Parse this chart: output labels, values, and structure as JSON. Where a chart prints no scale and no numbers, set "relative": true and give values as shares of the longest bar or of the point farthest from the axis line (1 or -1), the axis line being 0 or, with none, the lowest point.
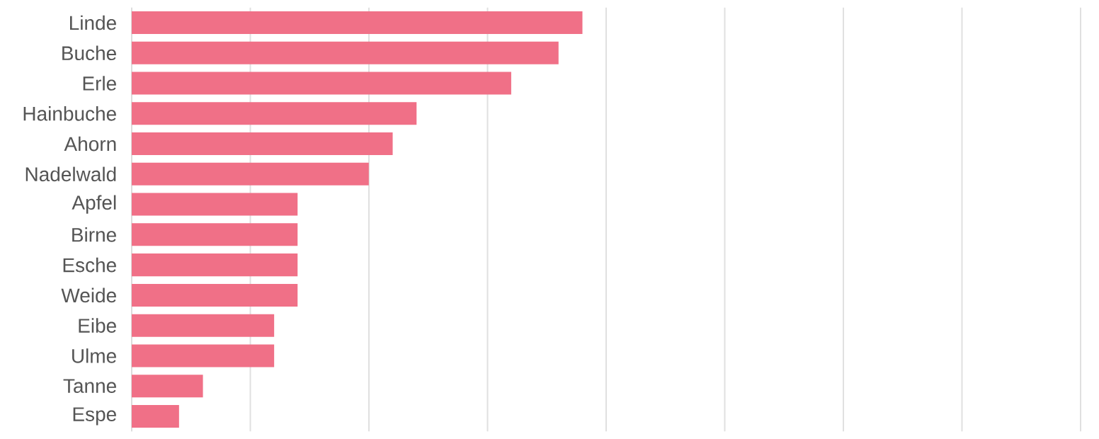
{
  "chart_data": {
    "type": "bar",
    "orientation": "horizontal",
    "relative": true,
    "grid": "x",
    "color": "#f07087",
    "categories": [
      "Linde",
      "Buche",
      "Erle",
      "Hainbuche",
      "Ahorn",
      "Nadelwald",
      "Apfel",
      "Birne",
      "Esche",
      "Weide",
      "Eibe",
      "Ulme",
      "Tanne",
      "Espe"
    ],
    "values": [
      1,
      0.947,
      0.842,
      0.632,
      0.579,
      0.526,
      0.368,
      0.368,
      0.368,
      0.368,
      0.316,
      0.316,
      0.158,
      0.105
    ]
  }
}
